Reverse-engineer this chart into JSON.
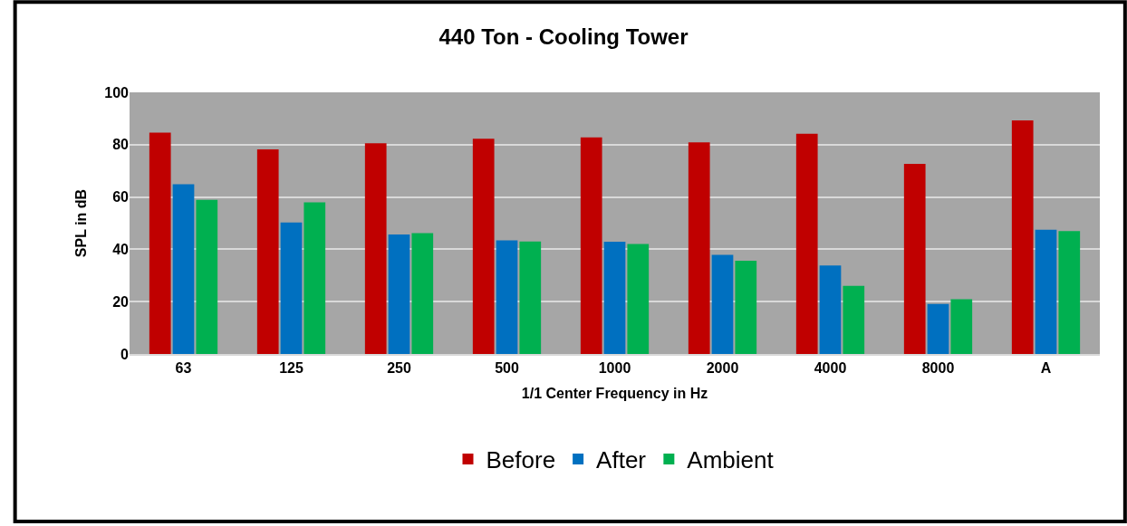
{
  "chart_data": {
    "type": "bar",
    "title": "440 Ton - Cooling Tower",
    "xlabel": "1/1 Center Frequency in Hz",
    "ylabel": "SPL in dB",
    "categories": [
      "63",
      "125",
      "250",
      "500",
      "1000",
      "2000",
      "4000",
      "8000",
      "A"
    ],
    "series": [
      {
        "name": "Before",
        "color": "#c00000",
        "values": [
          84.6,
          78.2,
          80.5,
          82.3,
          82.8,
          80.9,
          84.2,
          72.7,
          89.3
        ]
      },
      {
        "name": "After",
        "color": "#0070c0",
        "values": [
          64.9,
          50.3,
          45.7,
          43.4,
          42.9,
          37.9,
          33.8,
          19.1,
          47.5
        ]
      },
      {
        "name": "Ambient",
        "color": "#00b050",
        "values": [
          58.9,
          58.0,
          46.2,
          43.0,
          42.0,
          35.6,
          26.0,
          20.9,
          47.0
        ]
      }
    ],
    "ylim": [
      0,
      100
    ],
    "yticks": [
      0,
      20,
      40,
      60,
      80,
      100
    ],
    "grid": "y",
    "legend": "bottom"
  }
}
